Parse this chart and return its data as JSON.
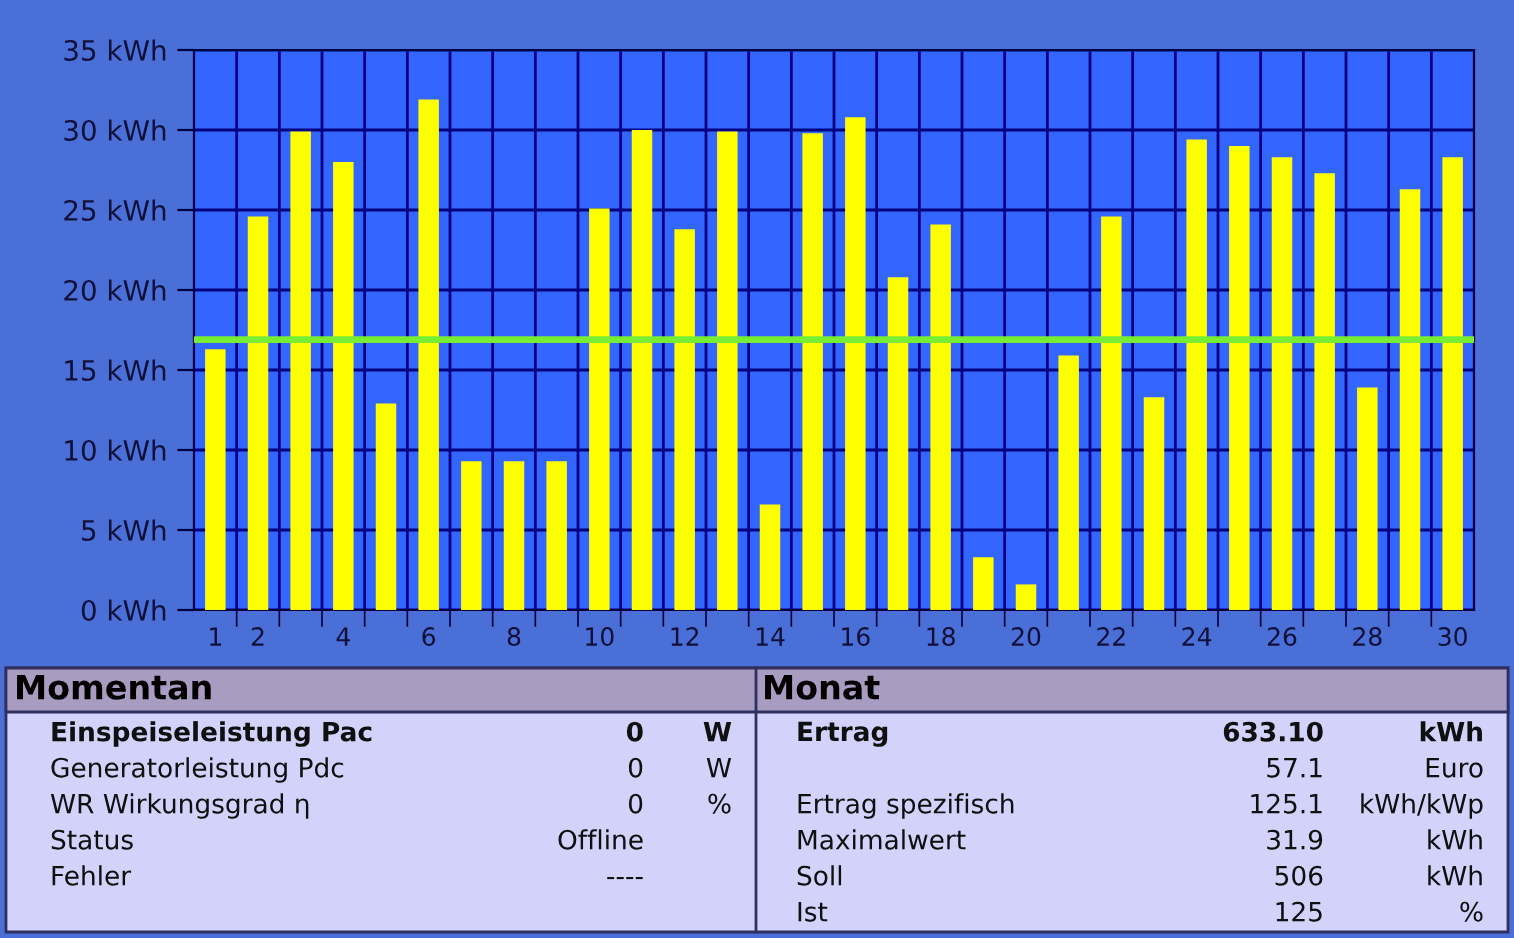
{
  "chart_data": {
    "type": "bar",
    "categories": [
      "1",
      "2",
      null,
      "4",
      null,
      "6",
      null,
      "8",
      null,
      "10",
      null,
      "12",
      null,
      "14",
      null,
      "16",
      null,
      "18",
      null,
      "20",
      null,
      "22",
      null,
      "24",
      null,
      "26",
      null,
      "28",
      null,
      "30"
    ],
    "values": [
      16.3,
      24.6,
      29.9,
      28.0,
      12.9,
      31.9,
      9.3,
      9.3,
      9.3,
      25.1,
      30.0,
      23.8,
      29.9,
      6.6,
      29.8,
      30.8,
      20.8,
      24.1,
      3.3,
      1.6,
      15.9,
      24.6,
      13.3,
      29.4,
      29.0,
      28.3,
      27.3,
      13.9,
      26.3,
      28.3
    ],
    "color": "#ffff00",
    "ylim": [
      0,
      35
    ],
    "yticks": [
      {
        "value": 0,
        "label": "0 kWh"
      },
      {
        "value": 5,
        "label": "5 kWh"
      },
      {
        "value": 10,
        "label": "10 kWh"
      },
      {
        "value": 15,
        "label": "15 kWh"
      },
      {
        "value": 20,
        "label": "20 kWh"
      },
      {
        "value": 25,
        "label": "25 kWh"
      },
      {
        "value": 30,
        "label": "30 kWh"
      },
      {
        "value": 35,
        "label": "35 kWh"
      }
    ],
    "grid": true,
    "ref_lines": [
      {
        "axis": "y",
        "value": 16.9,
        "label": null,
        "color": "#77ee33",
        "line_style": "solid"
      }
    ],
    "annotations": [
      "Momentan",
      "Monat",
      "Einspeiseleistung Pac",
      "0",
      "W",
      "Generatorleistung Pdc",
      "0",
      "W",
      "WR Wirkungsgrad η",
      "0",
      "%",
      "Status",
      "Offline",
      "Fehler",
      "----",
      "Ertrag",
      "633.10",
      "kWh",
      "57.1",
      "Euro",
      "Ertrag spezifisch",
      "125.1",
      "kWh/kWp",
      "Maximalwert",
      "31.9",
      "kWh",
      "Soll",
      "506",
      "kWh",
      "Ist",
      "125",
      "%"
    ]
  }
}
